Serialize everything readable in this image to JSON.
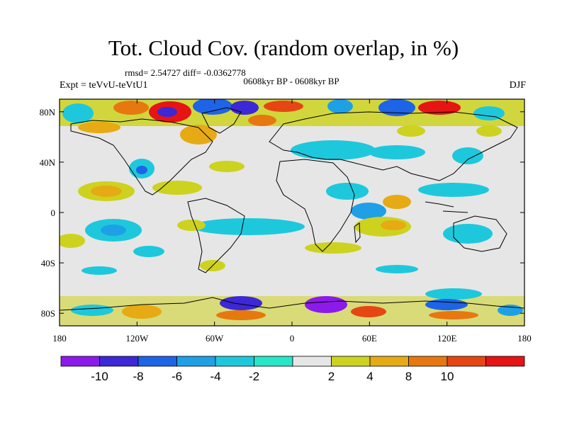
{
  "title": "Tot. Cloud Cov. (random overlap, in %)",
  "stats": "rmsd= 2.54727 diff= -0.0362778",
  "period": "0608kyr BP - 0608kyr BP",
  "experiment": "Expt = teVvU-teVtU1",
  "season": "DJF",
  "map": {
    "lon_ticks": [
      "180",
      "120W",
      "60W",
      "0",
      "60E",
      "120E",
      "180"
    ],
    "lat_ticks": [
      "80N",
      "40N",
      "0",
      "40S",
      "80S"
    ],
    "background_color": "#e6e6e6"
  },
  "colorbar": {
    "colors": [
      "#8c1aea",
      "#3c28d6",
      "#1e64e6",
      "#1ea0e6",
      "#1ec8dc",
      "#28e6c8",
      "#e6e6e6",
      "#cdd21e",
      "#e6aa14",
      "#e6780f",
      "#e64614",
      "#e61414"
    ],
    "labels": [
      "-10",
      "-8",
      "-6",
      "-4",
      "-2",
      "2",
      "4",
      "8",
      "10"
    ]
  }
}
